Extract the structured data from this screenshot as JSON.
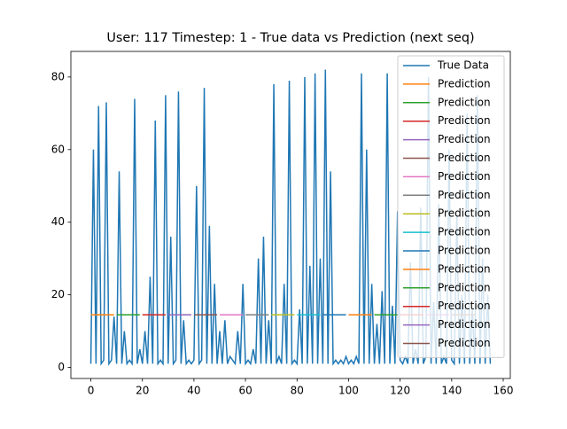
{
  "chart_data": {
    "type": "line",
    "title": "User: 117 Timestep: 1 - True data vs Prediction (next seq)",
    "xlim": [
      -7.75,
      162.75
    ],
    "xticks": [
      0,
      20,
      40,
      60,
      80,
      100,
      120,
      140,
      160
    ],
    "ylim": [
      -3.05,
      87.05
    ],
    "yticks": [
      0,
      20,
      40,
      60,
      80
    ],
    "legend": "upper right",
    "series": [
      {
        "name": "True Data",
        "color": "#1f77b4",
        "x": [
          0,
          1,
          2,
          3,
          4,
          5,
          6,
          7,
          8,
          9,
          10,
          11,
          12,
          13,
          14,
          15,
          16,
          17,
          18,
          19,
          20,
          21,
          22,
          23,
          24,
          25,
          26,
          27,
          28,
          29,
          30,
          31,
          32,
          33,
          34,
          35,
          36,
          37,
          38,
          39,
          40,
          41,
          42,
          43,
          44,
          45,
          46,
          47,
          48,
          49,
          50,
          51,
          52,
          53,
          54,
          55,
          56,
          57,
          58,
          59,
          60,
          61,
          62,
          63,
          64,
          65,
          66,
          67,
          68,
          69,
          70,
          71,
          72,
          73,
          74,
          75,
          76,
          77,
          78,
          79,
          80,
          81,
          82,
          83,
          84,
          85,
          86,
          87,
          88,
          89,
          90,
          91,
          92,
          93,
          94,
          95,
          96,
          97,
          98,
          99,
          100,
          101,
          102,
          103,
          104,
          105,
          106,
          107,
          108,
          109,
          110,
          111,
          112,
          113,
          114,
          115,
          116,
          117,
          118,
          119,
          120,
          121,
          122,
          123,
          124,
          125,
          126,
          127,
          128,
          129,
          130,
          131,
          132,
          133,
          134,
          135,
          136,
          137,
          138,
          139,
          140,
          141,
          142,
          143,
          144,
          145,
          146,
          147,
          148,
          149,
          150,
          151,
          152,
          153,
          154,
          155
        ],
        "values": [
          1,
          60,
          1,
          72,
          1,
          2,
          73,
          1,
          2,
          14,
          1,
          54,
          1,
          10,
          1,
          2,
          1,
          74,
          1,
          5,
          1,
          10,
          1,
          25,
          1,
          68,
          1,
          2,
          1,
          75,
          1,
          36,
          1,
          2,
          76,
          1,
          13,
          1,
          2,
          1,
          2,
          50,
          1,
          2,
          77,
          1,
          39,
          1,
          23,
          1,
          10,
          1,
          13,
          1,
          3,
          2,
          1,
          10,
          1,
          23,
          1,
          2,
          1,
          5,
          1,
          30,
          1,
          36,
          1,
          13,
          1,
          78,
          1,
          3,
          1,
          23,
          1,
          79,
          1,
          2,
          1,
          16,
          1,
          80,
          1,
          28,
          1,
          81,
          1,
          30,
          1,
          82,
          1,
          54,
          1,
          2,
          1,
          2,
          1,
          3,
          1,
          2,
          1,
          3,
          1,
          81,
          1,
          60,
          1,
          23,
          1,
          12,
          1,
          21,
          1,
          81,
          1,
          17,
          1,
          43,
          2,
          1,
          3,
          1,
          29,
          1,
          5,
          1,
          44,
          1,
          3,
          80,
          1,
          18,
          1,
          45,
          1,
          3,
          1,
          60,
          2,
          1,
          42,
          1,
          20,
          1,
          70,
          1,
          16,
          1,
          75,
          1,
          30,
          1,
          20,
          1
        ]
      },
      {
        "name": "Prediction",
        "color": "#ff7f0e",
        "x": [
          0,
          9
        ],
        "values": [
          14.5,
          14.5
        ]
      },
      {
        "name": "Prediction",
        "color": "#2ca02c",
        "x": [
          10,
          19
        ],
        "values": [
          14.5,
          14.5
        ]
      },
      {
        "name": "Prediction",
        "color": "#d62728",
        "x": [
          20,
          29
        ],
        "values": [
          14.5,
          14.5
        ]
      },
      {
        "name": "Prediction",
        "color": "#9467bd",
        "x": [
          30,
          39
        ],
        "values": [
          14.5,
          14.5
        ]
      },
      {
        "name": "Prediction",
        "color": "#8c564b",
        "x": [
          40,
          49
        ],
        "values": [
          14.5,
          14.5
        ]
      },
      {
        "name": "Prediction",
        "color": "#e377c2",
        "x": [
          50,
          59
        ],
        "values": [
          14.5,
          14.5
        ]
      },
      {
        "name": "Prediction",
        "color": "#7f7f7f",
        "x": [
          60,
          69
        ],
        "values": [
          14.5,
          14.5
        ]
      },
      {
        "name": "Prediction",
        "color": "#bcbd22",
        "x": [
          70,
          79
        ],
        "values": [
          14.5,
          14.5
        ]
      },
      {
        "name": "Prediction",
        "color": "#17becf",
        "x": [
          80,
          89
        ],
        "values": [
          14.5,
          14.5
        ]
      },
      {
        "name": "Prediction",
        "color": "#1f77b4",
        "x": [
          90,
          99
        ],
        "values": [
          14.5,
          14.5
        ]
      },
      {
        "name": "Prediction",
        "color": "#ff7f0e",
        "x": [
          100,
          109
        ],
        "values": [
          14.5,
          14.5
        ]
      },
      {
        "name": "Prediction",
        "color": "#2ca02c",
        "x": [
          110,
          119
        ],
        "values": [
          14.5,
          14.5
        ]
      },
      {
        "name": "Prediction",
        "color": "#d62728",
        "x": [
          120,
          129
        ],
        "values": [
          14.5,
          14.5
        ]
      },
      {
        "name": "Prediction",
        "color": "#9467bd",
        "x": [
          130,
          139
        ],
        "values": [
          14.5,
          14.5
        ]
      },
      {
        "name": "Prediction",
        "color": "#8c564b",
        "x": [
          140,
          149
        ],
        "values": [
          14.5,
          14.5
        ]
      }
    ]
  }
}
